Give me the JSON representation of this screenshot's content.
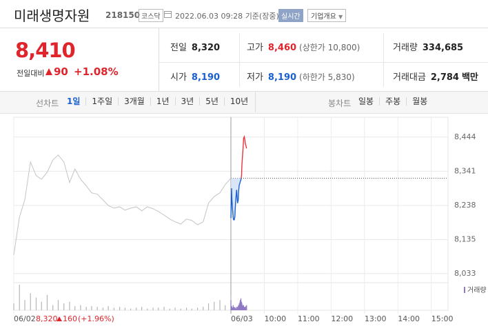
{
  "header": {
    "name": "미래생명자원",
    "code": "218150",
    "market": "코스닥",
    "datetime": "2022.06.03 09:28",
    "basis": "기준(장중)",
    "realtime": "실시간",
    "company_button": "기업개요"
  },
  "quote": {
    "price": "8,410",
    "change_label": "전일대비",
    "change": "90",
    "change_pct": "+1.08%"
  },
  "stats": [
    {
      "label": "전일",
      "value": "8,320",
      "color": "#222222"
    },
    {
      "label": "고가",
      "value": "8,460",
      "color": "#e0242c",
      "note": "(상한가 10,800)"
    },
    {
      "label": "거래량",
      "value": "334,685",
      "color": "#222222"
    },
    {
      "label": "시가",
      "value": "8,190",
      "color": "#1a5fd0"
    },
    {
      "label": "저가",
      "value": "8,190",
      "color": "#1a5fd0",
      "note": "(하한가 5,830)"
    },
    {
      "label": "거래대금",
      "value": "2,784",
      "color": "#222222",
      "unit": "백만"
    }
  ],
  "tabs": {
    "line_label": "선차트",
    "line_periods": [
      "1일",
      "1주일",
      "3개월",
      "1년",
      "3년",
      "5년",
      "10년"
    ],
    "candle_label": "봉차트",
    "candle_periods": [
      "일봉",
      "주봉",
      "월봉"
    ]
  },
  "chart_data": [
    {
      "type": "line",
      "xlim": [
        9,
        15.5
      ],
      "ylim": [
        8016,
        8483
      ],
      "xticks": [
        {
          "value": 9,
          "label": "06/02"
        }
      ],
      "series": [
        {
          "color": "#c4c4c4",
          "x": [
            9,
            9.17,
            9.33,
            9.5,
            9.67,
            9.83,
            10,
            10.17,
            10.33,
            10.5,
            10.67,
            10.83,
            11,
            11.17,
            11.33,
            11.5,
            11.67,
            11.83,
            12,
            12.17,
            12.33,
            12.5,
            12.67,
            12.83,
            13,
            13.17,
            13.33,
            13.5,
            13.67,
            13.83,
            14,
            14.17,
            14.33,
            14.5,
            14.67,
            14.83,
            15,
            15.17,
            15.33,
            15.5
          ],
          "values": [
            8089,
            8203,
            8255,
            8369,
            8328,
            8317,
            8338,
            8375,
            8390,
            8369,
            8307,
            8348,
            8317,
            8297,
            8276,
            8272,
            8255,
            8238,
            8230,
            8234,
            8224,
            8230,
            8234,
            8222,
            8234,
            8228,
            8220,
            8209,
            8197,
            8189,
            8182,
            8197,
            8193,
            8180,
            8189,
            8245,
            8265,
            8276,
            8301,
            8320
          ]
        }
      ],
      "volume": [
        8,
        30,
        12,
        20,
        15,
        10,
        18,
        6,
        12,
        8,
        10,
        5,
        6,
        4,
        5,
        4,
        3,
        5,
        3,
        4,
        3,
        2,
        3,
        4,
        2,
        3,
        3,
        4,
        2,
        3,
        2,
        3,
        2,
        3,
        4,
        8,
        10,
        12,
        6,
        18
      ],
      "volume_color": "#b5b5b5",
      "summary": {
        "close": "8,320",
        "change": "160",
        "change_pct": "(+1.96%)",
        "color": "#e0242c"
      }
    },
    {
      "type": "line",
      "xlim": [
        9,
        15.5
      ],
      "ylim": [
        8016,
        8483
      ],
      "xticks": [
        {
          "value": 9,
          "label": "06/03"
        },
        {
          "value": 10,
          "label": "10:00"
        },
        {
          "value": 11,
          "label": "11:00"
        },
        {
          "value": 12,
          "label": "12:00"
        },
        {
          "value": 13,
          "label": "13:00"
        },
        {
          "value": 14,
          "label": "14:00"
        },
        {
          "value": 15,
          "label": "15:00"
        }
      ],
      "yticks": [
        {
          "value": 8444,
          "label": "8,444"
        },
        {
          "value": 8341,
          "label": "8,341"
        },
        {
          "value": 8238,
          "label": "8,238"
        },
        {
          "value": 8135,
          "label": "8,135"
        },
        {
          "value": 8033,
          "label": "8,033"
        }
      ],
      "grid": true,
      "ref_line": 8320,
      "series": [
        {
          "color": "#1a5fd0",
          "up_color": "#e8323c",
          "fill": "#cfe0f5",
          "x": [
            9,
            9.02,
            9.03,
            9.05,
            9.07,
            9.08,
            9.1,
            9.12,
            9.13,
            9.15,
            9.17,
            9.18,
            9.2,
            9.22,
            9.23,
            9.25,
            9.27,
            9.28,
            9.3,
            9.32,
            9.33,
            9.35,
            9.37,
            9.38,
            9.4,
            9.42,
            9.43,
            9.45,
            9.47
          ],
          "values": [
            8200,
            8290,
            8255,
            8225,
            8200,
            8195,
            8195,
            8205,
            8230,
            8260,
            8285,
            8270,
            8245,
            8255,
            8280,
            8300,
            8305,
            8310,
            8315,
            8330,
            8360,
            8390,
            8420,
            8440,
            8445,
            8435,
            8425,
            8418,
            8410
          ]
        }
      ],
      "volume": [
        12,
        5,
        4,
        3,
        6,
        3,
        4,
        3,
        3,
        2,
        4,
        3,
        4,
        5,
        6,
        8,
        10,
        12,
        14,
        10,
        8,
        6,
        5,
        6,
        4,
        3,
        4,
        5,
        6
      ],
      "volume_color": "#8f79c4",
      "volume_legend": "거래량"
    }
  ]
}
